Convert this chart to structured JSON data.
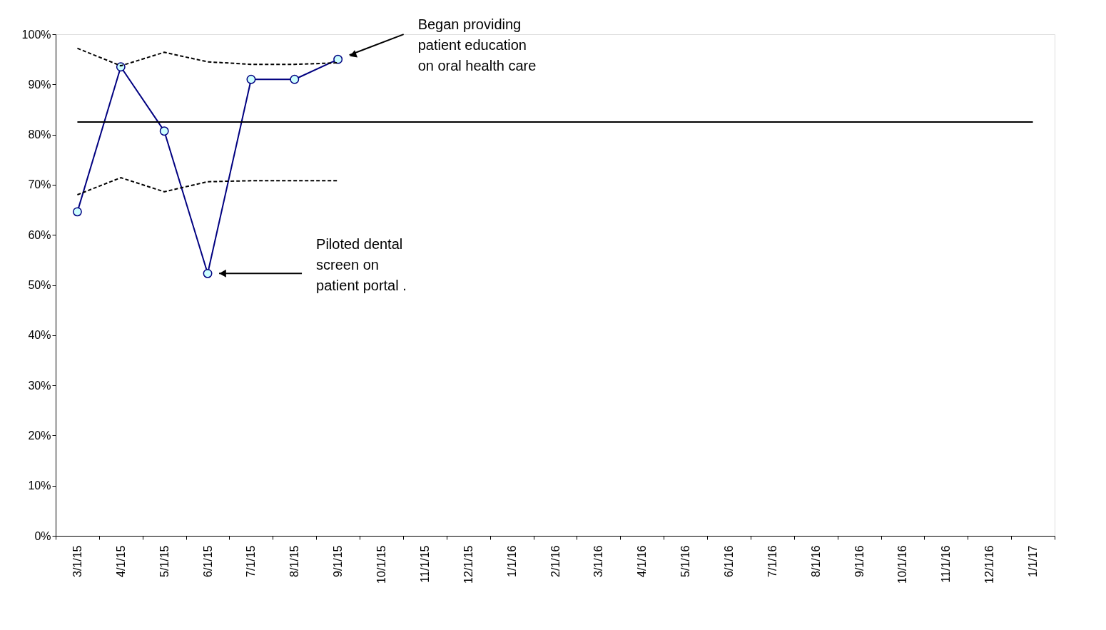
{
  "chart_data": {
    "type": "line",
    "categories": [
      "3/1/15",
      "4/1/15",
      "5/1/15",
      "6/1/15",
      "7/1/15",
      "8/1/15",
      "9/1/15",
      "10/1/15",
      "11/1/15",
      "12/1/15",
      "1/1/16",
      "2/1/16",
      "3/1/16",
      "4/1/16",
      "5/1/16",
      "6/1/16",
      "7/1/16",
      "8/1/16",
      "9/1/16",
      "10/1/16",
      "11/1/16",
      "12/1/16",
      "1/1/17"
    ],
    "series": [
      {
        "color": "#000080",
        "marker": "circle",
        "line_style": "solid",
        "values": [
          64.6,
          93.5,
          80.7,
          52.3,
          91.0,
          91.0,
          95.0,
          null,
          null,
          null,
          null,
          null,
          null,
          null,
          null,
          null,
          null,
          null,
          null,
          null,
          null,
          null,
          null
        ]
      },
      {
        "color": "#000000",
        "marker": "none",
        "line_style": "dashed",
        "values": [
          97.2,
          93.7,
          96.4,
          94.5,
          94.0,
          94.0,
          94.3,
          null,
          null,
          null,
          null,
          null,
          null,
          null,
          null,
          null,
          null,
          null,
          null,
          null,
          null,
          null,
          null
        ]
      },
      {
        "color": "#000000",
        "marker": "none",
        "line_style": "dashed",
        "values": [
          68.0,
          71.4,
          68.6,
          70.6,
          70.8,
          70.8,
          70.8,
          null,
          null,
          null,
          null,
          null,
          null,
          null,
          null,
          null,
          null,
          null,
          null,
          null,
          null,
          null,
          null
        ]
      },
      {
        "color": "#000000",
        "marker": "none",
        "line_style": "solid",
        "values": [
          82.5,
          82.5,
          82.5,
          82.5,
          82.5,
          82.5,
          82.5,
          82.5,
          82.5,
          82.5,
          82.5,
          82.5,
          82.5,
          82.5,
          82.5,
          82.5,
          82.5,
          82.5,
          82.5,
          82.5,
          82.5,
          82.5,
          82.5
        ]
      }
    ],
    "ylim": [
      0,
      100
    ],
    "yticks": [
      {
        "value": 0,
        "label": "0%"
      },
      {
        "value": 10,
        "label": "10%"
      },
      {
        "value": 20,
        "label": "20%"
      },
      {
        "value": 30,
        "label": "30%"
      },
      {
        "value": 40,
        "label": "40%"
      },
      {
        "value": 50,
        "label": "50%"
      },
      {
        "value": 60,
        "label": "60%"
      },
      {
        "value": 70,
        "label": "70%"
      },
      {
        "value": 80,
        "label": "80%"
      },
      {
        "value": 90,
        "label": "90%"
      },
      {
        "value": 100,
        "label": "100%"
      }
    ],
    "grid": false,
    "annotations": [
      "Began providing\npatient education\non oral health care",
      "Piloted dental\nscreen on\npatient portal ."
    ]
  }
}
